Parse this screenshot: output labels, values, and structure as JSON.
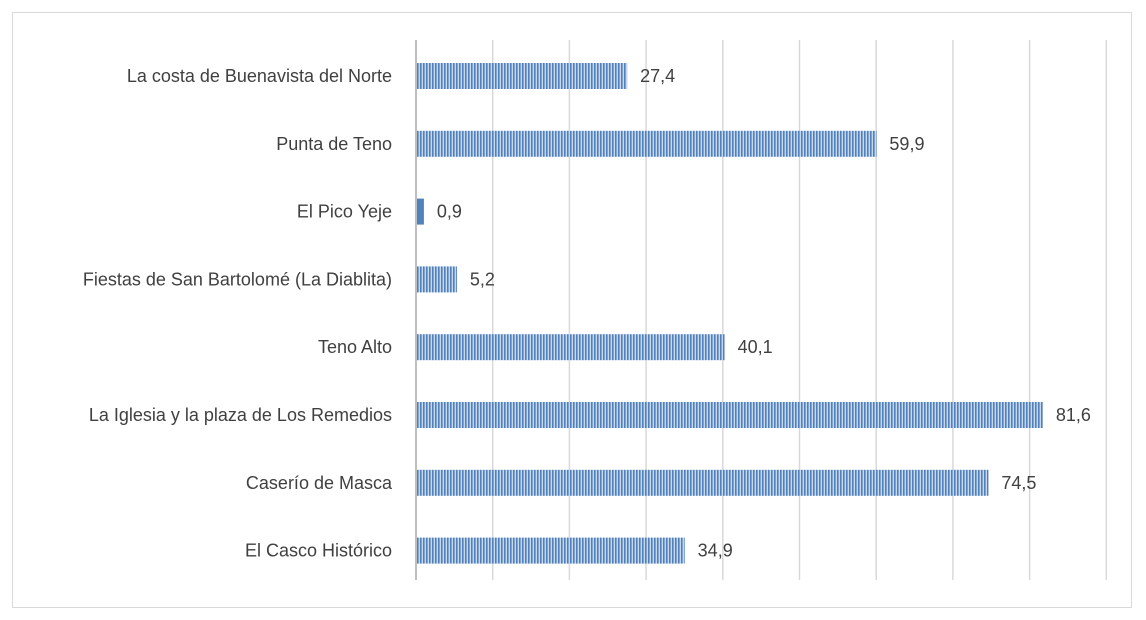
{
  "chart_data": {
    "type": "bar",
    "orientation": "horizontal",
    "categories": [
      "La costa de Buenavista del Norte",
      "Punta de Teno",
      "El Pico Yeje",
      "Fiestas de San Bartolomé (La Diablita)",
      "Teno Alto",
      "La Iglesia y la plaza de Los Remedios",
      "Caserío de Masca",
      "El Casco Histórico"
    ],
    "values": [
      27.4,
      59.9,
      0.9,
      5.2,
      40.1,
      81.6,
      74.5,
      34.9
    ],
    "value_labels": [
      "27,4",
      "59,9",
      "0,9",
      "5,2",
      "40,1",
      "81,6",
      "74,5",
      "34,9"
    ],
    "title": "",
    "xlabel": "",
    "ylabel": "",
    "xlim": [
      0,
      90
    ],
    "grid": "vertical",
    "bar_color": "#4f81bd",
    "bar_pattern": "vertical-stripes"
  }
}
